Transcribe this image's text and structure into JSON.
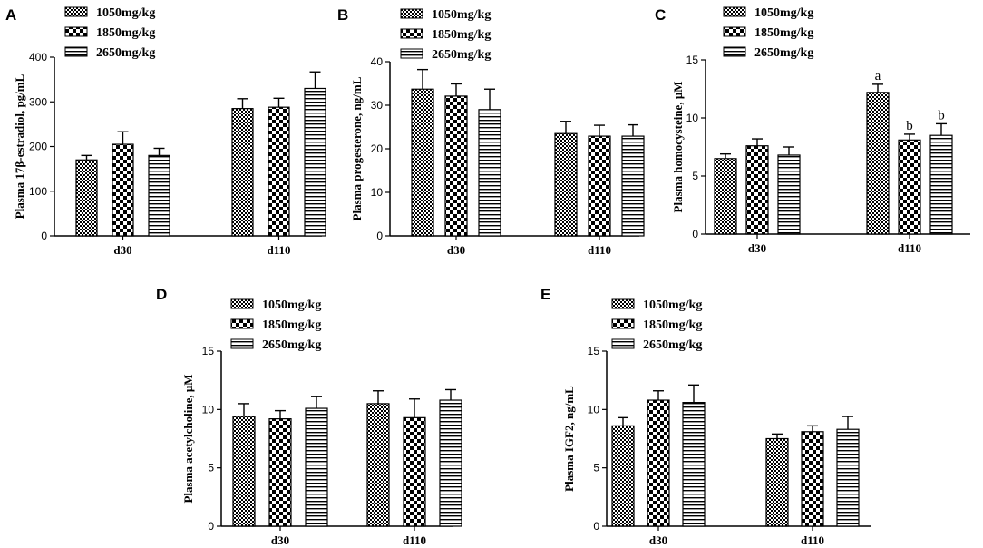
{
  "chart_data": [
    {
      "panel": "A",
      "type": "bar",
      "ylabel": "Plasma 17β-estradiol, pg/mL",
      "ylim": [
        0,
        400
      ],
      "yticks": [
        "0",
        "100",
        "200",
        "300",
        "400"
      ],
      "categories": [
        "d30",
        "d110"
      ],
      "series": [
        {
          "name": "1050mg/kg",
          "values": [
            170,
            285
          ],
          "errors": [
            10,
            22
          ]
        },
        {
          "name": "1850mg/kg",
          "values": [
            205,
            288
          ],
          "errors": [
            28,
            20
          ]
        },
        {
          "name": "2650mg/kg",
          "values": [
            180,
            330
          ],
          "errors": [
            16,
            37
          ]
        }
      ],
      "annotations": []
    },
    {
      "panel": "B",
      "type": "bar",
      "ylabel": "Plasma progesterone, ng/mL",
      "ylim": [
        0,
        40
      ],
      "yticks": [
        "0",
        "10",
        "20",
        "30",
        "40"
      ],
      "categories": [
        "d30",
        "d110"
      ],
      "series": [
        {
          "name": "1050mg/kg",
          "values": [
            33.7,
            23.5
          ],
          "errors": [
            4.5,
            2.8
          ]
        },
        {
          "name": "1850mg/kg",
          "values": [
            32.1,
            22.9
          ],
          "errors": [
            2.8,
            2.5
          ]
        },
        {
          "name": "2650mg/kg",
          "values": [
            29.0,
            22.9
          ],
          "errors": [
            4.7,
            2.6
          ]
        }
      ],
      "annotations": []
    },
    {
      "panel": "C",
      "type": "bar",
      "ylabel": "Plasma homocysteine, μM",
      "ylim": [
        0,
        15
      ],
      "yticks": [
        "0",
        "5",
        "10",
        "15"
      ],
      "categories": [
        "d30",
        "d110"
      ],
      "series": [
        {
          "name": "1050mg/kg",
          "values": [
            6.5,
            12.2
          ],
          "errors": [
            0.4,
            0.7
          ]
        },
        {
          "name": "1850mg/kg",
          "values": [
            7.6,
            8.1
          ],
          "errors": [
            0.6,
            0.5
          ]
        },
        {
          "name": "2650mg/kg",
          "values": [
            6.8,
            8.5
          ],
          "errors": [
            0.7,
            1.0
          ]
        }
      ],
      "annotations": [
        {
          "category": 1,
          "series": 0,
          "text": "a"
        },
        {
          "category": 1,
          "series": 1,
          "text": "b"
        },
        {
          "category": 1,
          "series": 2,
          "text": "b"
        }
      ]
    },
    {
      "panel": "D",
      "type": "bar",
      "ylabel": "Plasma acetylcholine, μM",
      "ylim": [
        0,
        15
      ],
      "yticks": [
        "0",
        "5",
        "10",
        "15"
      ],
      "categories": [
        "d30",
        "d110"
      ],
      "series": [
        {
          "name": "1050mg/kg",
          "values": [
            9.4,
            10.5
          ],
          "errors": [
            1.1,
            1.1
          ]
        },
        {
          "name": "1850mg/kg",
          "values": [
            9.2,
            9.3
          ],
          "errors": [
            0.7,
            1.6
          ]
        },
        {
          "name": "2650mg/kg",
          "values": [
            10.1,
            10.8
          ],
          "errors": [
            1.0,
            0.9
          ]
        }
      ],
      "annotations": []
    },
    {
      "panel": "E",
      "type": "bar",
      "ylabel": "Plasma IGF2, ng/mL",
      "ylim": [
        0,
        15
      ],
      "yticks": [
        "0",
        "5",
        "10",
        "15"
      ],
      "categories": [
        "d30",
        "d110"
      ],
      "series": [
        {
          "name": "1050mg/kg",
          "values": [
            8.6,
            7.5
          ],
          "errors": [
            0.7,
            0.4
          ]
        },
        {
          "name": "1850mg/kg",
          "values": [
            10.8,
            8.1
          ],
          "errors": [
            0.8,
            0.5
          ]
        },
        {
          "name": "2650mg/kg",
          "values": [
            10.6,
            8.3
          ],
          "errors": [
            1.5,
            1.1
          ]
        }
      ],
      "annotations": []
    }
  ]
}
